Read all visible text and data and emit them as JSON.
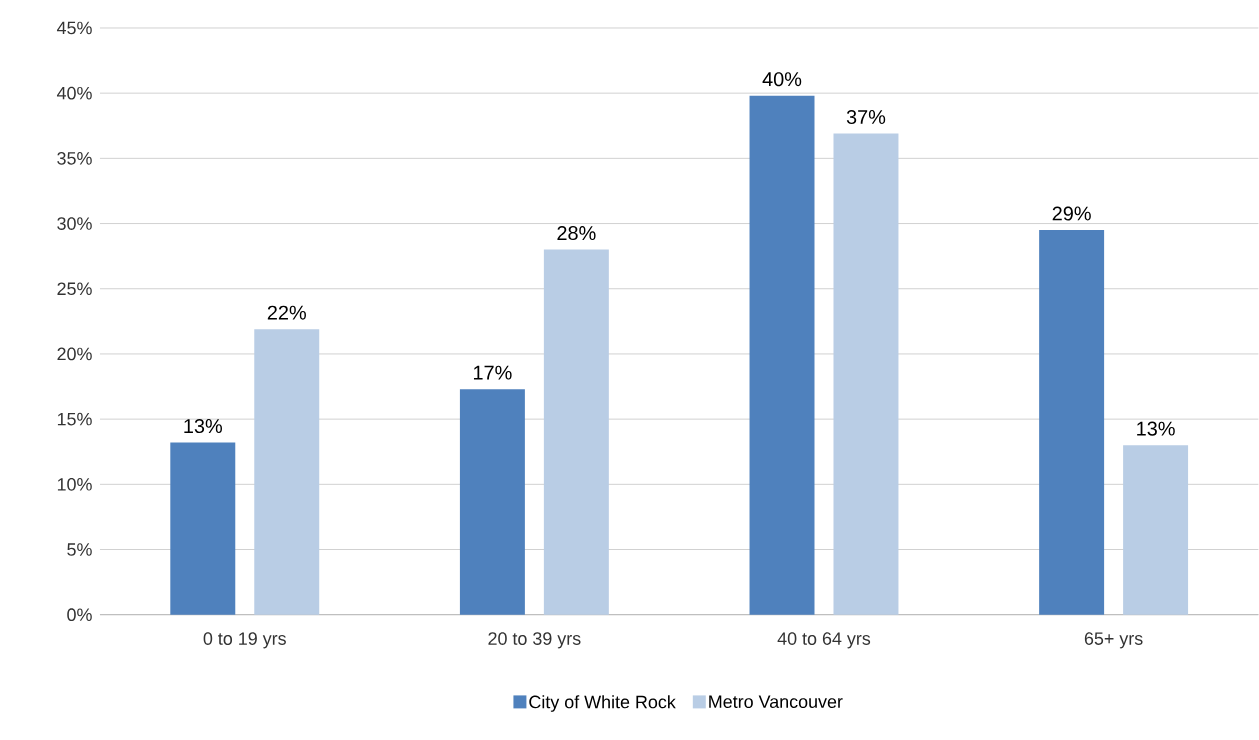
{
  "chart_data": {
    "type": "bar",
    "categories": [
      "0 to 19 yrs",
      "20 to 39 yrs",
      "40 to 64 yrs",
      "65+ yrs"
    ],
    "series": [
      {
        "name": "City of White Rock",
        "color": "#4f81bd",
        "values": [
          13.2,
          17.3,
          39.8,
          29.5
        ],
        "value_labels": [
          "13%",
          "17%",
          "40%",
          "29%"
        ]
      },
      {
        "name": "Metro Vancouver",
        "color": "#b9cde5",
        "values": [
          21.9,
          28.0,
          36.9,
          13.0
        ],
        "value_labels": [
          "22%",
          "28%",
          "37%",
          "13%"
        ]
      }
    ],
    "ylim": [
      0,
      45
    ],
    "yticks": [
      {
        "value": 0,
        "label": "0%"
      },
      {
        "value": 5,
        "label": "5%"
      },
      {
        "value": 10,
        "label": "10%"
      },
      {
        "value": 15,
        "label": "15%"
      },
      {
        "value": 20,
        "label": "20%"
      },
      {
        "value": 25,
        "label": "25%"
      },
      {
        "value": 30,
        "label": "30%"
      },
      {
        "value": 35,
        "label": "35%"
      },
      {
        "value": 40,
        "label": "40%"
      },
      {
        "value": 45,
        "label": "45%"
      }
    ],
    "grid": "y",
    "legend": "bottom"
  }
}
